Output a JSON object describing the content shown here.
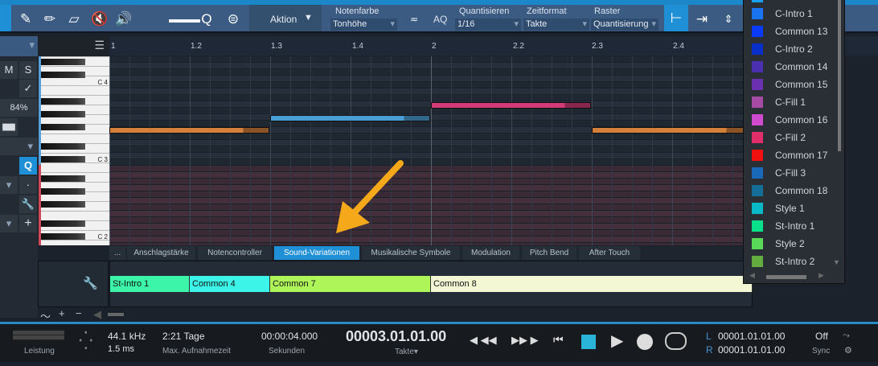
{
  "toolbar": {
    "action_label": "Aktion",
    "note_color_label": "Notenfarbe",
    "note_color_value": "Tonhöhe",
    "aq_label": "AQ",
    "quantize_label": "Quantisieren",
    "quantize_value": "1/16",
    "timeformat_label": "Zeitformat",
    "timeformat_value": "Takte",
    "grid_label": "Raster",
    "grid_value": "Quantisierung"
  },
  "left": {
    "m": "M",
    "s": "S",
    "zoom": "84%",
    "q": "Q"
  },
  "ruler": [
    "1",
    "1.2",
    "1.3",
    "1.4",
    "2",
    "2.2",
    "2.3",
    "2.4"
  ],
  "keys": [
    "C 4",
    "C 3",
    "C 2"
  ],
  "notes_colors": {
    "orange": "#d5803a",
    "blue": "#4a9ed6",
    "pink": "#d33a78"
  },
  "tabs": {
    "more": "...",
    "items": [
      "Anschlagstärke",
      "Notencontroller",
      "Sound-Variationen",
      "Musikalische Symbole",
      "Modulation",
      "Pitch Bend",
      "After Touch"
    ],
    "active": "Sound-Variationen"
  },
  "sound_variations": [
    {
      "name": "St-Intro 1",
      "color": "#3cf5a8"
    },
    {
      "name": "Common 4",
      "color": "#3cf5e8"
    },
    {
      "name": "Common 7",
      "color": "#aef55a"
    },
    {
      "name": "Common 8",
      "color": "#f3f7d4"
    }
  ],
  "popup": {
    "items": [
      {
        "name": "C-Intro 1",
        "color": "#1a74f0"
      },
      {
        "name": "Common 13",
        "color": "#0a3af5"
      },
      {
        "name": "C-Intro 2",
        "color": "#0a2ec8"
      },
      {
        "name": "Common 14",
        "color": "#4a30b0"
      },
      {
        "name": "Common 15",
        "color": "#6a30b0"
      },
      {
        "name": "C-Fill 1",
        "color": "#a54aa5"
      },
      {
        "name": "Common 16",
        "color": "#d04ad0"
      },
      {
        "name": "C-Fill 2",
        "color": "#e02e6a"
      },
      {
        "name": "Common 17",
        "color": "#f01010"
      },
      {
        "name": "C-Fill 3",
        "color": "#1a68b8"
      },
      {
        "name": "Common 18",
        "color": "#146e98"
      },
      {
        "name": "Style 1",
        "color": "#0ab8c8"
      },
      {
        "name": "St-Intro 1",
        "color": "#0ae08a"
      },
      {
        "name": "Style 2",
        "color": "#5ad858"
      },
      {
        "name": "St-Intro 2",
        "color": "#62ac40"
      }
    ]
  },
  "transport": {
    "performance": "Leistung",
    "sample_rate": "44.1 kHz",
    "latency": "1.5 ms",
    "rec_time": "2:21 Tage",
    "rec_time_label": "Max. Aufnahmezeit",
    "seconds": "00:00:04.000",
    "seconds_label": "Sekunden",
    "bars": "00003.01.01.00",
    "bars_label": "Takte",
    "l_label": "L",
    "l_value": "00001.01.01.00",
    "r_label": "R",
    "r_value": "00001.01.01.00",
    "sync_value": "Off",
    "sync_label": "Sync"
  }
}
